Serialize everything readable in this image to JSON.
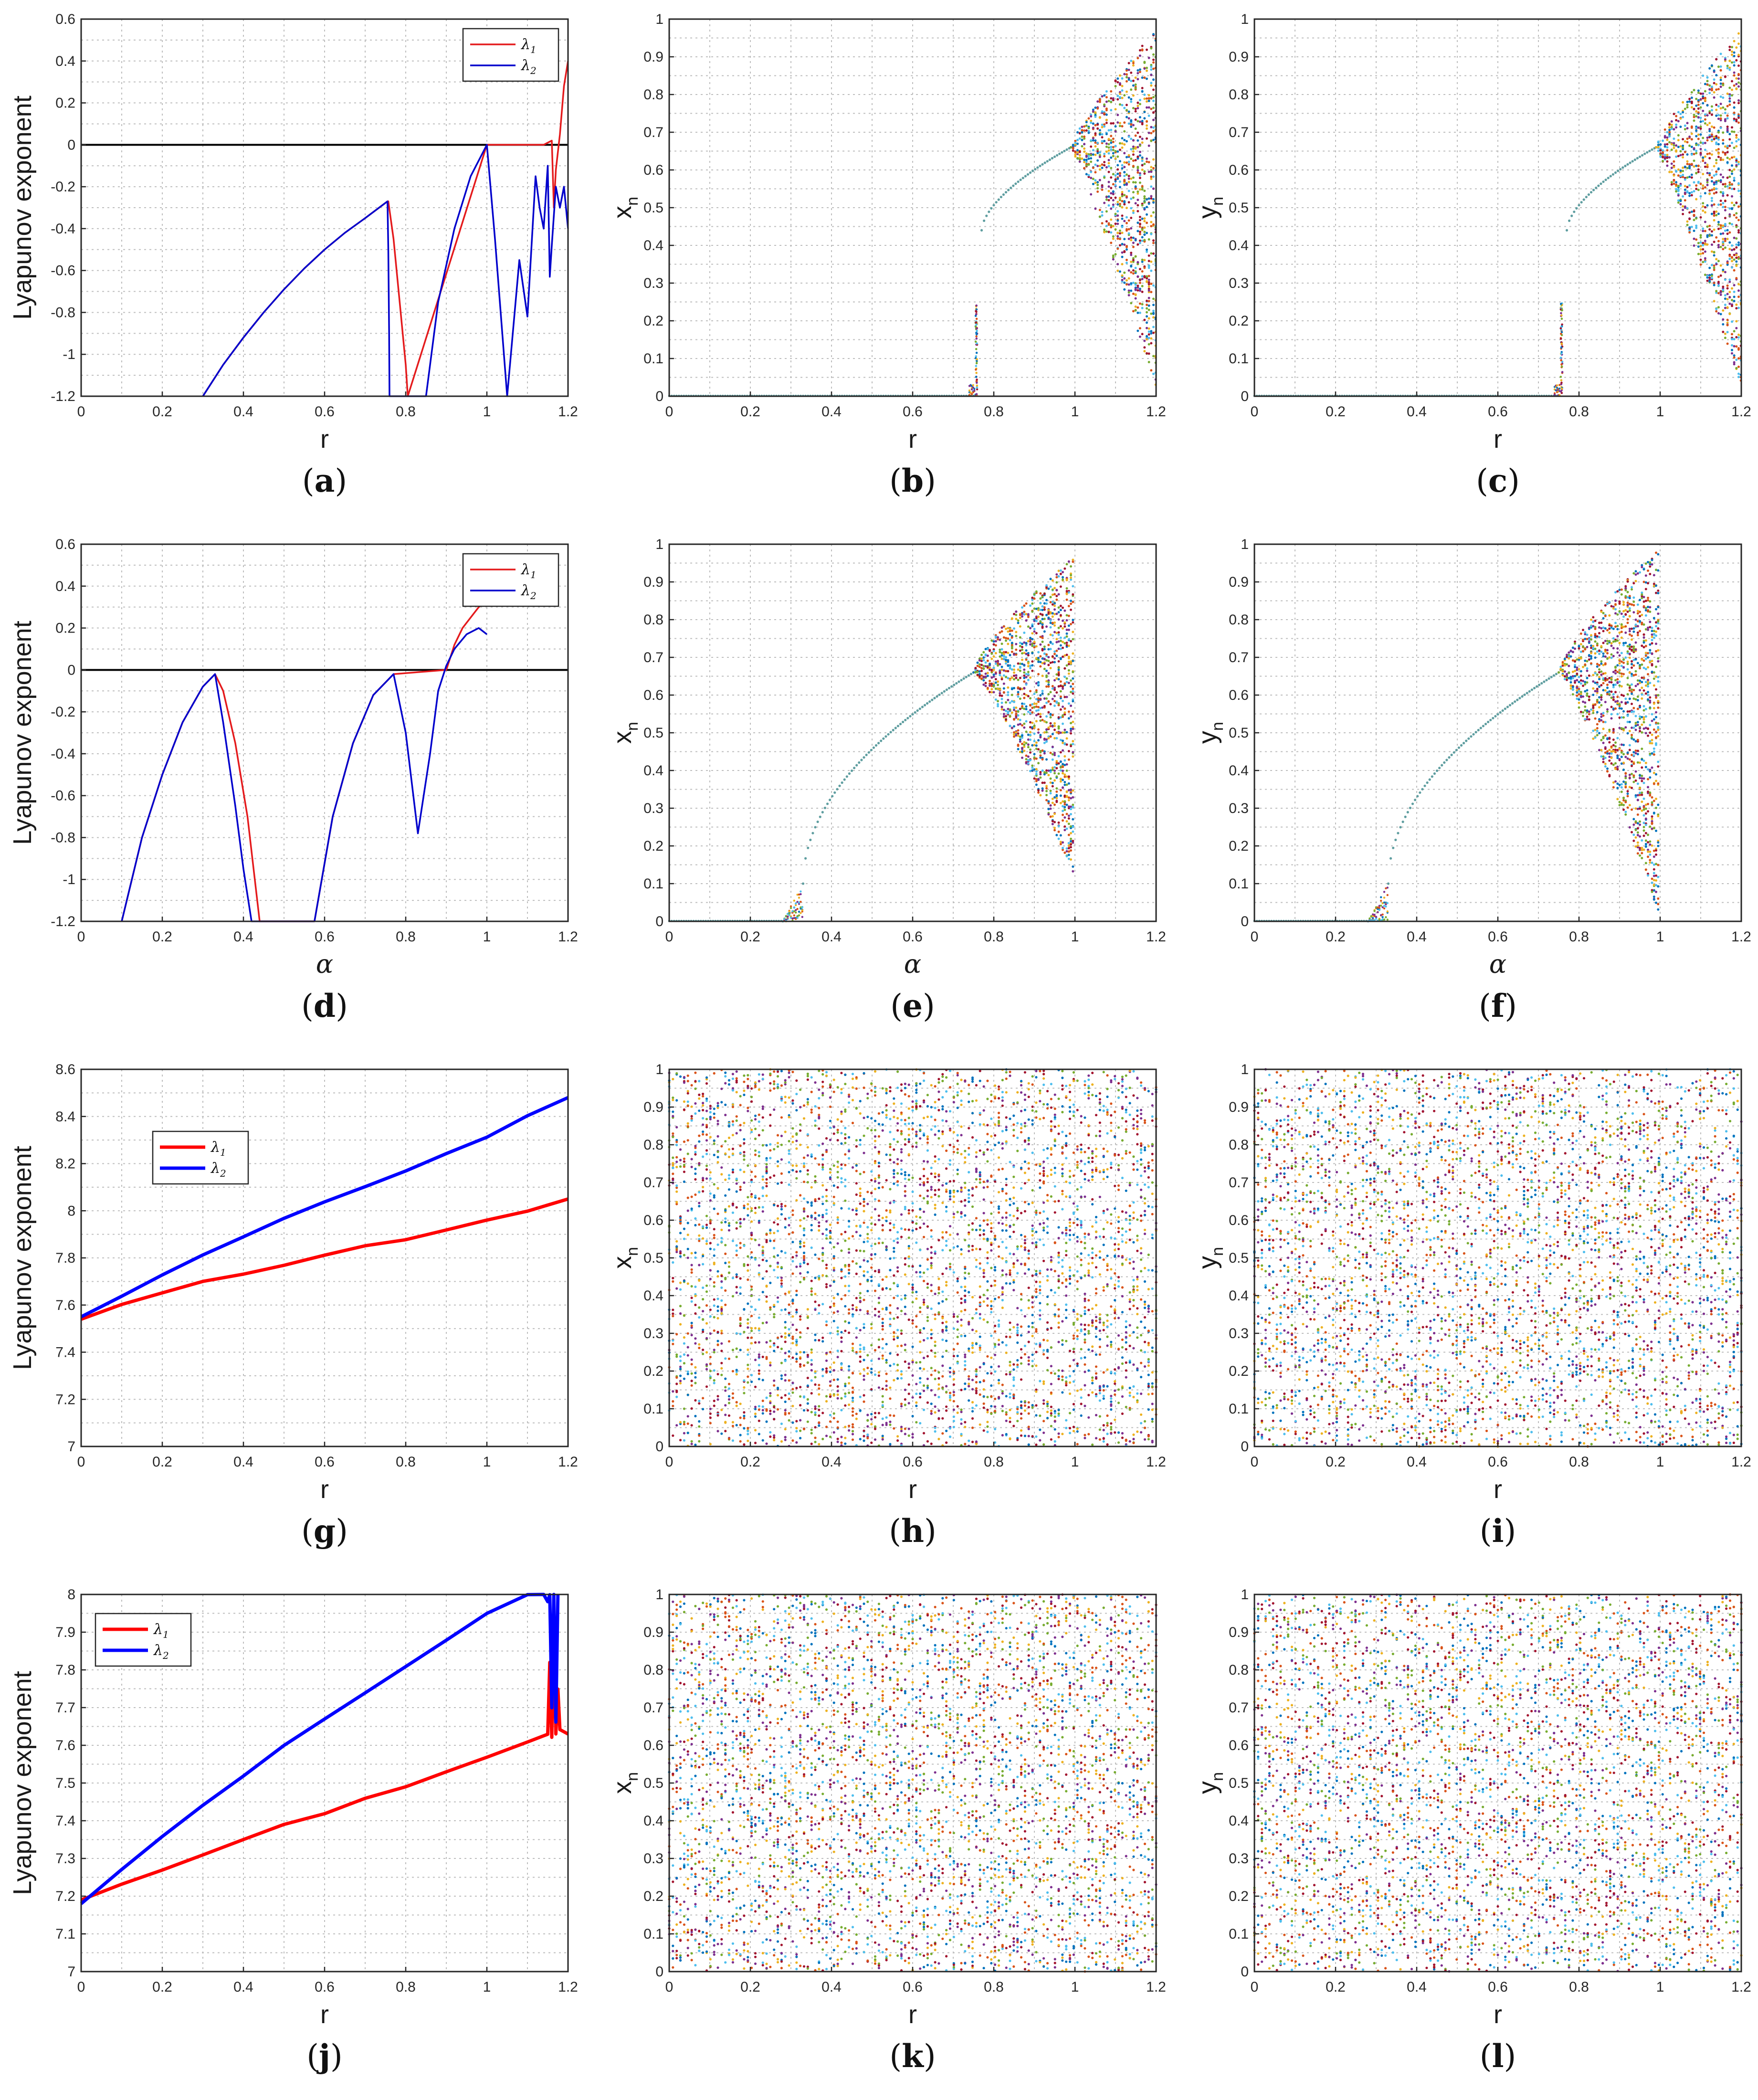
{
  "chart_data": [
    {
      "id": "a",
      "type": "line",
      "caption": "a",
      "xlabel": "r",
      "ylabel": "Lyapunov exponent",
      "xlim": [
        0,
        1.2
      ],
      "ylim": [
        -1.2,
        0.6
      ],
      "xticks": [
        "0",
        "0.2",
        "0.4",
        "0.6",
        "0.8",
        "1",
        "1.2"
      ],
      "yticks": [
        "-1.2",
        "-1",
        "-0.8",
        "-0.6",
        "-0.4",
        "-0.2",
        "0",
        "0.2",
        "0.4",
        "0.6"
      ],
      "grid": true,
      "legend_position": "top-right",
      "zero_line": true,
      "line_width": "thin",
      "series": [
        {
          "name": "λ1",
          "label_main": "λ",
          "label_sub": "1",
          "color": "#e41a1c",
          "x": [
            0.3,
            0.35,
            0.4,
            0.45,
            0.5,
            0.55,
            0.6,
            0.65,
            0.7,
            0.755,
            0.757,
            0.77,
            0.785,
            0.8,
            0.805,
            1.0,
            1.05,
            1.1,
            1.14,
            1.16,
            1.165,
            1.17,
            1.18,
            1.19,
            1.2
          ],
          "y": [
            -1.2,
            -1.05,
            -0.92,
            -0.8,
            -0.69,
            -0.59,
            -0.5,
            -0.42,
            -0.35,
            -0.27,
            -0.27,
            -0.45,
            -0.75,
            -1.05,
            -1.2,
            0,
            0,
            0,
            0,
            0.02,
            -0.3,
            -0.12,
            0.05,
            0.28,
            0.4
          ]
        },
        {
          "name": "λ2",
          "label_main": "λ",
          "label_sub": "2",
          "color": "#0000cc",
          "x": [
            0.3,
            0.35,
            0.4,
            0.45,
            0.5,
            0.55,
            0.6,
            0.65,
            0.7,
            0.755,
            0.757,
            0.759,
            0.76,
            0.85,
            0.88,
            0.92,
            0.96,
            1.0,
            1.02,
            1.05,
            1.08,
            1.1,
            1.12,
            1.13,
            1.14,
            1.15,
            1.155,
            1.16,
            1.17,
            1.18,
            1.19,
            1.2
          ],
          "y": [
            -1.2,
            -1.05,
            -0.92,
            -0.8,
            -0.69,
            -0.59,
            -0.5,
            -0.42,
            -0.35,
            -0.27,
            -0.5,
            -0.9,
            -1.2,
            -1.2,
            -0.75,
            -0.4,
            -0.15,
            0,
            -0.45,
            -1.2,
            -0.55,
            -0.82,
            -0.15,
            -0.3,
            -0.4,
            -0.1,
            -0.63,
            -0.48,
            -0.2,
            -0.3,
            -0.2,
            -0.4
          ]
        }
      ]
    },
    {
      "id": "b",
      "type": "scatter",
      "caption": "b",
      "xlabel": "r",
      "ylabel_main": "x",
      "ylabel_sub": "n",
      "xlim": [
        0,
        1.2
      ],
      "ylim": [
        0,
        1
      ],
      "xticks": [
        "0",
        "0.2",
        "0.4",
        "0.6",
        "0.8",
        "1",
        "1.2"
      ],
      "yticks": [
        "0",
        "0.1",
        "0.2",
        "0.3",
        "0.4",
        "0.5",
        "0.6",
        "0.7",
        "0.8",
        "0.9",
        "1"
      ],
      "grid": true,
      "pattern": "bifurcation",
      "description_points": {
        "zero_until": 0.755,
        "spike_at": 0.757,
        "spike_max": 0.25,
        "branch_start": [
          0.77,
          0.44
        ],
        "branch_join": [
          0.99,
          0.66
        ],
        "chaos_upper_end": [
          1.2,
          0.97
        ],
        "chaos_lower_end": [
          1.2,
          0.02
        ]
      }
    },
    {
      "id": "c",
      "type": "scatter",
      "caption": "c",
      "xlabel": "r",
      "ylabel_main": "y",
      "ylabel_sub": "n",
      "xlim": [
        0,
        1.2
      ],
      "ylim": [
        0,
        1
      ],
      "xticks": [
        "0",
        "0.2",
        "0.4",
        "0.6",
        "0.8",
        "1",
        "1.2"
      ],
      "yticks": [
        "0",
        "0.1",
        "0.2",
        "0.3",
        "0.4",
        "0.5",
        "0.6",
        "0.7",
        "0.8",
        "0.9",
        "1"
      ],
      "grid": true,
      "pattern": "bifurcation",
      "description_points": {
        "zero_until": 0.755,
        "spike_at": 0.757,
        "spike_max": 0.25,
        "branch_start": [
          0.77,
          0.44
        ],
        "branch_join": [
          0.99,
          0.66
        ],
        "chaos_upper_end": [
          1.2,
          0.97
        ],
        "chaos_lower_end": [
          1.2,
          0.02
        ]
      }
    },
    {
      "id": "d",
      "type": "line",
      "caption": "d",
      "xlabel": "α",
      "ylabel": "Lyapunov exponent",
      "xlim": [
        0,
        1.2
      ],
      "ylim": [
        -1.2,
        0.6
      ],
      "xticks": [
        "0",
        "0.2",
        "0.4",
        "0.6",
        "0.8",
        "1",
        "1.2"
      ],
      "yticks": [
        "-1.2",
        "-1",
        "-0.8",
        "-0.6",
        "-0.4",
        "-0.2",
        "0",
        "0.2",
        "0.4",
        "0.6"
      ],
      "grid": true,
      "legend_position": "top-right",
      "zero_line": true,
      "line_width": "thin",
      "series": [
        {
          "name": "λ1",
          "label_main": "λ",
          "label_sub": "1",
          "color": "#e41a1c",
          "x": [
            0.1,
            0.15,
            0.2,
            0.25,
            0.3,
            0.33,
            0.35,
            0.38,
            0.41,
            0.44,
            0.575,
            0.62,
            0.67,
            0.72,
            0.77,
            0.9,
            0.92,
            0.94,
            0.96,
            0.98,
            1.0
          ],
          "y": [
            -1.2,
            -0.8,
            -0.5,
            -0.25,
            -0.08,
            -0.02,
            -0.1,
            -0.35,
            -0.7,
            -1.2,
            -1.2,
            -0.7,
            -0.35,
            -0.12,
            -0.02,
            0,
            0.12,
            0.2,
            0.25,
            0.3,
            0.33
          ]
        },
        {
          "name": "λ2",
          "label_main": "λ",
          "label_sub": "2",
          "color": "#0000cc",
          "x": [
            0.1,
            0.15,
            0.2,
            0.25,
            0.3,
            0.33,
            0.35,
            0.38,
            0.4,
            0.42,
            0.575,
            0.62,
            0.67,
            0.72,
            0.77,
            0.8,
            0.83,
            0.86,
            0.88,
            0.9,
            0.92,
            0.95,
            0.98,
            1.0
          ],
          "y": [
            -1.2,
            -0.8,
            -0.5,
            -0.25,
            -0.08,
            -0.02,
            -0.25,
            -0.65,
            -0.95,
            -1.2,
            -1.2,
            -0.7,
            -0.35,
            -0.12,
            -0.02,
            -0.3,
            -0.78,
            -0.4,
            -0.1,
            0.02,
            0.1,
            0.17,
            0.2,
            0.17
          ]
        }
      ]
    },
    {
      "id": "e",
      "type": "scatter",
      "caption": "e",
      "xlabel": "α",
      "ylabel_main": "x",
      "ylabel_sub": "n",
      "xlim": [
        0,
        1.2
      ],
      "ylim": [
        0,
        1
      ],
      "xticks": [
        "0",
        "0.2",
        "0.4",
        "0.6",
        "0.8",
        "1",
        "1.2"
      ],
      "yticks": [
        "0",
        "0.1",
        "0.2",
        "0.3",
        "0.4",
        "0.5",
        "0.6",
        "0.7",
        "0.8",
        "0.9",
        "1"
      ],
      "grid": true,
      "pattern": "bifurcation-alpha",
      "description_points": {
        "zero_until": 0.28,
        "curve_start": [
          0.33,
          0.1
        ],
        "branch_join": [
          0.75,
          0.66
        ],
        "chaos_upper_end": [
          1.0,
          0.97
        ],
        "chaos_lower_end": [
          1.0,
          0.11
        ]
      }
    },
    {
      "id": "f",
      "type": "scatter",
      "caption": "f",
      "xlabel": "α",
      "ylabel_main": "y",
      "ylabel_sub": "n",
      "xlim": [
        0,
        1.2
      ],
      "ylim": [
        0,
        1
      ],
      "xticks": [
        "0",
        "0.2",
        "0.4",
        "0.6",
        "0.8",
        "1",
        "1.2"
      ],
      "yticks": [
        "0",
        "0.1",
        "0.2",
        "0.3",
        "0.4",
        "0.5",
        "0.6",
        "0.7",
        "0.8",
        "0.9",
        "1"
      ],
      "grid": true,
      "pattern": "bifurcation-alpha",
      "description_points": {
        "zero_until": 0.28,
        "curve_start": [
          0.33,
          0.1
        ],
        "branch_join": [
          0.75,
          0.66
        ],
        "chaos_upper_end": [
          1.0,
          0.99
        ],
        "chaos_lower_end": [
          1.0,
          0.01
        ]
      }
    },
    {
      "id": "g",
      "type": "line",
      "caption": "g",
      "xlabel": "r",
      "ylabel": "Lyapunov exponent",
      "xlim": [
        0,
        1.2
      ],
      "ylim": [
        7,
        8.6
      ],
      "xticks": [
        "0",
        "0.2",
        "0.4",
        "0.6",
        "0.8",
        "1",
        "1.2"
      ],
      "yticks": [
        "7",
        "7.2",
        "7.4",
        "7.6",
        "7.8",
        "8",
        "8.2",
        "8.4",
        "8.6"
      ],
      "grid": true,
      "legend_position": "upper-left",
      "zero_line": false,
      "line_width": "thick",
      "series": [
        {
          "name": "λ1",
          "label_main": "λ",
          "label_sub": "1",
          "color": "#ff0000",
          "x": [
            0,
            0.1,
            0.2,
            0.3,
            0.4,
            0.5,
            0.6,
            0.7,
            0.8,
            0.9,
            1.0,
            1.1,
            1.2
          ],
          "y": [
            7.54,
            7.6,
            7.65,
            7.7,
            7.73,
            7.77,
            7.81,
            7.85,
            7.88,
            7.92,
            7.96,
            8.0,
            8.05
          ]
        },
        {
          "name": "λ2",
          "label_main": "λ",
          "label_sub": "2",
          "color": "#0000ff",
          "x": [
            0,
            0.1,
            0.2,
            0.3,
            0.4,
            0.5,
            0.6,
            0.7,
            0.8,
            0.9,
            1.0,
            1.1,
            1.2
          ],
          "y": [
            7.55,
            7.64,
            7.73,
            7.81,
            7.89,
            7.97,
            8.04,
            8.1,
            8.17,
            8.24,
            8.31,
            8.4,
            8.48
          ]
        }
      ]
    },
    {
      "id": "h",
      "type": "scatter",
      "caption": "h",
      "xlabel": "r",
      "ylabel_main": "x",
      "ylabel_sub": "n",
      "xlim": [
        0,
        1.2
      ],
      "ylim": [
        0,
        1
      ],
      "xticks": [
        "0",
        "0.2",
        "0.4",
        "0.6",
        "0.8",
        "1",
        "1.2"
      ],
      "yticks": [
        "0",
        "0.1",
        "0.2",
        "0.3",
        "0.4",
        "0.5",
        "0.6",
        "0.7",
        "0.8",
        "0.9",
        "1"
      ],
      "grid": true,
      "pattern": "uniform-noise"
    },
    {
      "id": "i",
      "type": "scatter",
      "caption": "i",
      "xlabel": "r",
      "ylabel_main": "y",
      "ylabel_sub": "n",
      "xlim": [
        0,
        1.2
      ],
      "ylim": [
        0,
        1
      ],
      "xticks": [
        "0",
        "0.2",
        "0.4",
        "0.6",
        "0.8",
        "1",
        "1.2"
      ],
      "yticks": [
        "0",
        "0.1",
        "0.2",
        "0.3",
        "0.4",
        "0.5",
        "0.6",
        "0.7",
        "0.8",
        "0.9",
        "1"
      ],
      "grid": true,
      "pattern": "uniform-noise"
    },
    {
      "id": "j",
      "type": "line",
      "caption": "j",
      "xlabel": "r",
      "ylabel": "Lyapunov exponent",
      "xlim": [
        0,
        1.2
      ],
      "ylim": [
        7,
        8
      ],
      "xticks": [
        "0",
        "0.2",
        "0.4",
        "0.6",
        "0.8",
        "1",
        "1.2"
      ],
      "yticks": [
        "7",
        "7.1",
        "7.2",
        "7.3",
        "7.4",
        "7.5",
        "7.6",
        "7.7",
        "7.8",
        "7.9",
        "8"
      ],
      "grid": true,
      "legend_position": "top-left",
      "zero_line": false,
      "line_width": "thick",
      "series": [
        {
          "name": "λ1",
          "label_main": "λ",
          "label_sub": "1",
          "color": "#ff0000",
          "x": [
            0,
            0.1,
            0.2,
            0.3,
            0.4,
            0.5,
            0.6,
            0.7,
            0.8,
            0.9,
            1.0,
            1.1,
            1.15,
            1.155,
            1.16,
            1.165,
            1.17,
            1.175,
            1.18,
            1.2
          ],
          "y": [
            7.19,
            7.23,
            7.27,
            7.31,
            7.35,
            7.39,
            7.42,
            7.46,
            7.49,
            7.53,
            7.57,
            7.61,
            7.63,
            7.82,
            7.62,
            7.9,
            7.63,
            7.75,
            7.64,
            7.63
          ]
        },
        {
          "name": "λ2",
          "label_main": "λ",
          "label_sub": "2",
          "color": "#0000ff",
          "x": [
            0,
            0.1,
            0.2,
            0.3,
            0.4,
            0.5,
            0.6,
            0.7,
            0.8,
            0.9,
            1.0,
            1.1,
            1.14,
            1.15,
            1.155,
            1.16,
            1.165,
            1.17,
            1.175
          ],
          "y": [
            7.18,
            7.27,
            7.36,
            7.44,
            7.52,
            7.6,
            7.67,
            7.74,
            7.81,
            7.88,
            7.95,
            8.0,
            8.0,
            7.98,
            8.0,
            7.7,
            8.0,
            7.66,
            8.0
          ]
        }
      ]
    },
    {
      "id": "k",
      "type": "scatter",
      "caption": "k",
      "xlabel": "r",
      "ylabel_main": "x",
      "ylabel_sub": "n",
      "xlim": [
        0,
        1.2
      ],
      "ylim": [
        0,
        1
      ],
      "xticks": [
        "0",
        "0.2",
        "0.4",
        "0.6",
        "0.8",
        "1",
        "1.2"
      ],
      "yticks": [
        "0",
        "0.1",
        "0.2",
        "0.3",
        "0.4",
        "0.5",
        "0.6",
        "0.7",
        "0.8",
        "0.9",
        "1"
      ],
      "grid": true,
      "pattern": "uniform-noise"
    },
    {
      "id": "l",
      "type": "scatter",
      "caption": "l",
      "xlabel": "r",
      "ylabel_main": "y",
      "ylabel_sub": "n",
      "xlim": [
        0,
        1.2
      ],
      "ylim": [
        0,
        1
      ],
      "xticks": [
        "0",
        "0.2",
        "0.4",
        "0.6",
        "0.8",
        "1",
        "1.2"
      ],
      "yticks": [
        "0",
        "0.1",
        "0.2",
        "0.3",
        "0.4",
        "0.5",
        "0.6",
        "0.7",
        "0.8",
        "0.9",
        "1"
      ],
      "grid": true,
      "pattern": "uniform-noise"
    }
  ],
  "scatter_palette": [
    "#0072bd",
    "#d95319",
    "#edb120",
    "#7e2f8e",
    "#77ac30",
    "#4dbeee",
    "#a2142f"
  ],
  "bifurcation_curve_color": "#5f9ea0"
}
